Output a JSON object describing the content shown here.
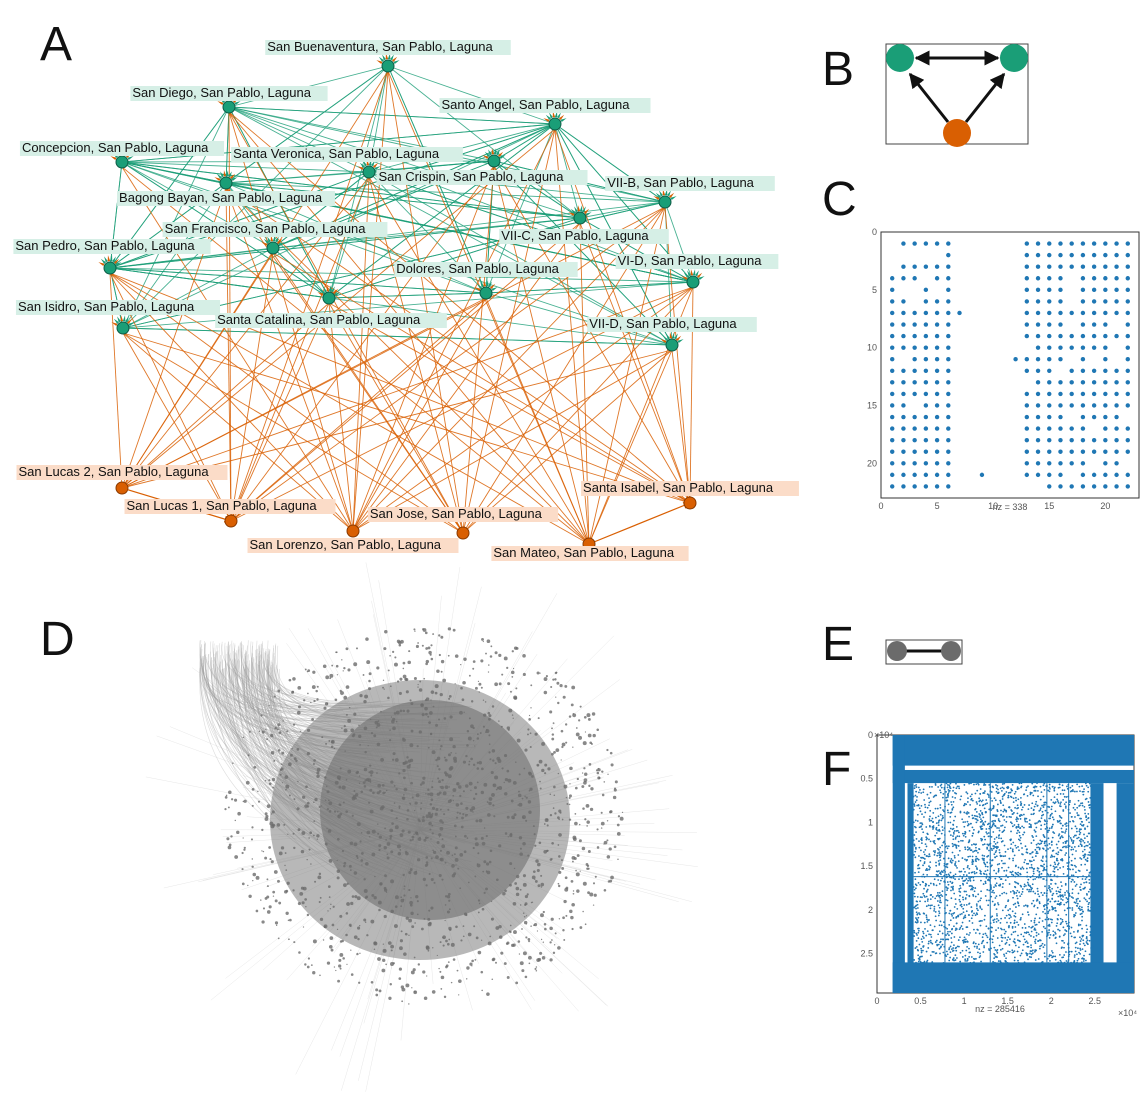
{
  "panels": {
    "A": "A",
    "B": "B",
    "C": "C",
    "D": "D",
    "E": "E",
    "F": "F"
  },
  "colors": {
    "green": "#1a9e77",
    "orange": "#d95f02",
    "green_label_bg": "#d6efe6",
    "orange_label_bg": "#fbdcc8",
    "matrix_blue": "#1f77b4",
    "gray_node": "#6b6b6b"
  },
  "network_a": {
    "green_nodes": [
      {
        "id": "g0",
        "label": "San Buenaventura, San Pablo, Laguna"
      },
      {
        "id": "g1",
        "label": "San Diego, San Pablo, Laguna"
      },
      {
        "id": "g2",
        "label": "Santo Angel, San Pablo, Laguna"
      },
      {
        "id": "g3",
        "label": "Concepcion, San Pablo, Laguna"
      },
      {
        "id": "g4",
        "label": "Santa Veronica, San Pablo, Laguna"
      },
      {
        "id": "g5",
        "label": "San Crispin, San Pablo, Laguna"
      },
      {
        "id": "g6",
        "label": "VII-B, San Pablo, Laguna"
      },
      {
        "id": "g7",
        "label": "Bagong Bayan, San Pablo, Laguna"
      },
      {
        "id": "g8",
        "label": "San Francisco, San Pablo, Laguna"
      },
      {
        "id": "g9",
        "label": "VII-C, San Pablo, Laguna"
      },
      {
        "id": "g10",
        "label": "San Pedro, San Pablo, Laguna"
      },
      {
        "id": "g11",
        "label": "VI-D, San Pablo, Laguna"
      },
      {
        "id": "g12",
        "label": "Dolores, San Pablo, Laguna"
      },
      {
        "id": "g13",
        "label": "San Isidro, San Pablo, Laguna"
      },
      {
        "id": "g14",
        "label": "Santa Catalina, San Pablo, Laguna"
      },
      {
        "id": "g15",
        "label": "VII-D, San Pablo, Laguna"
      }
    ],
    "orange_nodes": [
      {
        "id": "o0",
        "label": "San Lucas 2, San Pablo, Laguna"
      },
      {
        "id": "o1",
        "label": "San Lucas 1, San Pablo, Laguna"
      },
      {
        "id": "o2",
        "label": "San Lorenzo, San Pablo, Laguna"
      },
      {
        "id": "o3",
        "label": "San Jose, San Pablo, Laguna"
      },
      {
        "id": "o4",
        "label": "San Mateo, San Pablo, Laguna"
      },
      {
        "id": "o5",
        "label": "Santa Isabel, San Pablo, Laguna"
      }
    ]
  },
  "matrix_c": {
    "nz_label": "nz = 338",
    "x_ticks": [
      "0",
      "5",
      "10",
      "15",
      "20"
    ],
    "y_ticks": [
      "0",
      "5",
      "10",
      "15",
      "20"
    ],
    "size": 22
  },
  "matrix_f": {
    "nz_label": "nz = 285416",
    "x_ticks": [
      "0",
      "0.5",
      "1",
      "1.5",
      "2",
      "2.5"
    ],
    "y_ticks": [
      "0",
      "0.5",
      "1",
      "1.5",
      "2",
      "2.5"
    ],
    "exponent_label": "×10⁴"
  }
}
